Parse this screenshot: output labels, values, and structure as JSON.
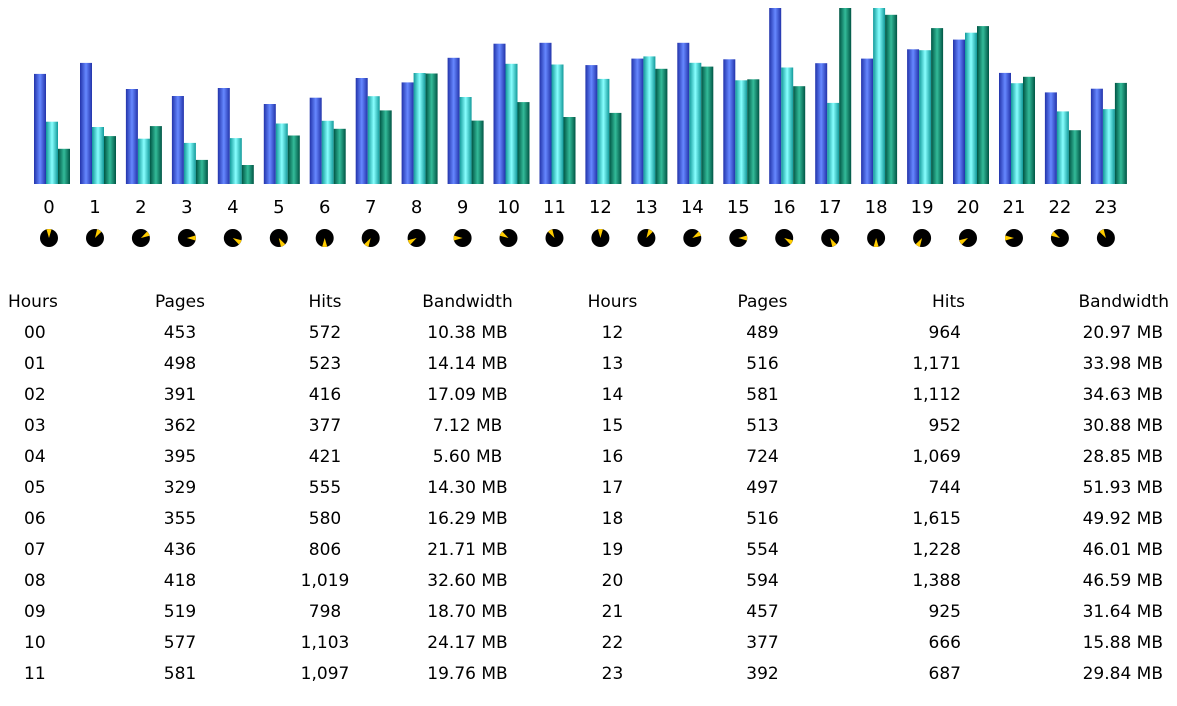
{
  "chart_data": {
    "type": "bar",
    "categories": [
      "0",
      "1",
      "2",
      "3",
      "4",
      "5",
      "6",
      "7",
      "8",
      "9",
      "10",
      "11",
      "12",
      "13",
      "14",
      "15",
      "16",
      "17",
      "18",
      "19",
      "20",
      "21",
      "22",
      "23"
    ],
    "series": [
      {
        "name": "Pages",
        "color": "#4466dd",
        "values": [
          453,
          498,
          391,
          362,
          395,
          329,
          355,
          436,
          418,
          519,
          577,
          581,
          489,
          516,
          581,
          513,
          724,
          497,
          516,
          554,
          594,
          457,
          377,
          392
        ]
      },
      {
        "name": "Hits",
        "color": "#44dddd",
        "values": [
          572,
          523,
          416,
          377,
          421,
          555,
          580,
          806,
          1019,
          798,
          1103,
          1097,
          964,
          1171,
          1112,
          952,
          1069,
          744,
          1615,
          1228,
          1388,
          925,
          666,
          687
        ]
      },
      {
        "name": "Bandwidth",
        "color": "#118866",
        "values": [
          10.38,
          14.14,
          17.09,
          7.12,
          5.6,
          14.3,
          16.29,
          21.71,
          32.6,
          18.7,
          24.17,
          19.76,
          20.97,
          33.98,
          34.63,
          30.88,
          28.85,
          51.93,
          49.92,
          46.01,
          46.59,
          31.64,
          15.88,
          29.84
        ]
      }
    ],
    "clock_icons": "clock-icon"
  },
  "table": {
    "headers_left": [
      "Hours",
      "Pages",
      "Hits",
      "Bandwidth"
    ],
    "headers_right": [
      "Hours",
      "Pages",
      "Hits",
      "Bandwidth"
    ],
    "rows_left": [
      [
        "00",
        "453",
        "572",
        "10.38 MB"
      ],
      [
        "01",
        "498",
        "523",
        "14.14 MB"
      ],
      [
        "02",
        "391",
        "416",
        "17.09 MB"
      ],
      [
        "03",
        "362",
        "377",
        "7.12 MB"
      ],
      [
        "04",
        "395",
        "421",
        "5.60 MB"
      ],
      [
        "05",
        "329",
        "555",
        "14.30 MB"
      ],
      [
        "06",
        "355",
        "580",
        "16.29 MB"
      ],
      [
        "07",
        "436",
        "806",
        "21.71 MB"
      ],
      [
        "08",
        "418",
        "1,019",
        "32.60 MB"
      ],
      [
        "09",
        "519",
        "798",
        "18.70 MB"
      ],
      [
        "10",
        "577",
        "1,103",
        "24.17 MB"
      ],
      [
        "11",
        "581",
        "1,097",
        "19.76 MB"
      ]
    ],
    "rows_right": [
      [
        "12",
        "489",
        "964",
        "20.97 MB"
      ],
      [
        "13",
        "516",
        "1,171",
        "33.98 MB"
      ],
      [
        "14",
        "581",
        "1,112",
        "34.63 MB"
      ],
      [
        "15",
        "513",
        "952",
        "30.88 MB"
      ],
      [
        "16",
        "724",
        "1,069",
        "28.85 MB"
      ],
      [
        "17",
        "497",
        "744",
        "51.93 MB"
      ],
      [
        "18",
        "516",
        "1,615",
        "49.92 MB"
      ],
      [
        "19",
        "554",
        "1,228",
        "46.01 MB"
      ],
      [
        "20",
        "594",
        "1,388",
        "46.59 MB"
      ],
      [
        "21",
        "457",
        "925",
        "31.64 MB"
      ],
      [
        "22",
        "377",
        "666",
        "15.88 MB"
      ],
      [
        "23",
        "392",
        "687",
        "29.84 MB"
      ]
    ]
  }
}
